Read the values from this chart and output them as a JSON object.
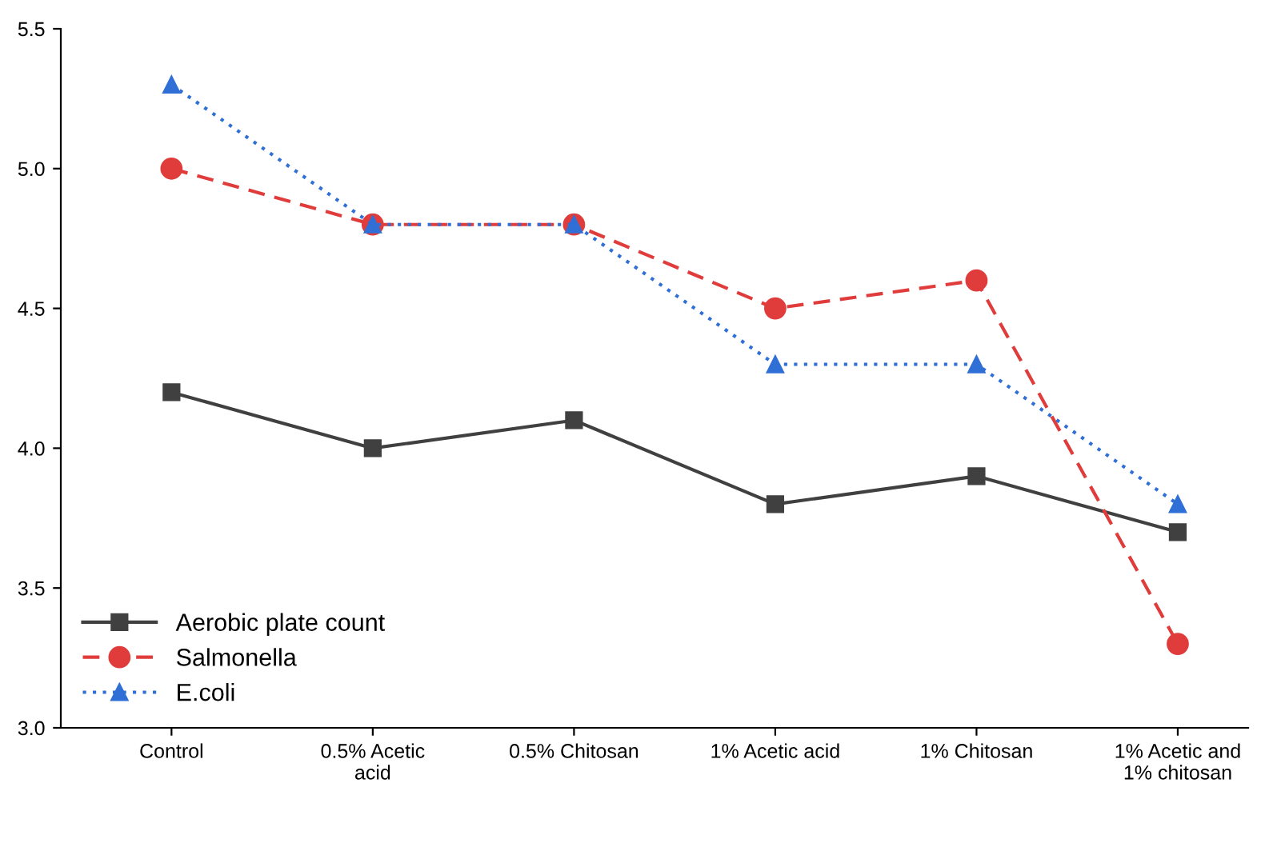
{
  "chart_data": {
    "type": "line",
    "categories": [
      "Control",
      "0.5% Acetic\nacid",
      "0.5% Chitosan",
      "1% Acetic acid",
      "1% Chitosan",
      "1% Acetic and\n1% chitosan"
    ],
    "series": [
      {
        "name": "Aerobic plate count",
        "color": "#404040",
        "values": [
          4.2,
          4.0,
          4.1,
          3.8,
          3.9,
          3.7
        ],
        "marker": "square",
        "line_style": "solid"
      },
      {
        "name": "Salmonella",
        "color": "#e03c3c",
        "values": [
          5.0,
          4.8,
          4.8,
          4.5,
          4.6,
          3.3
        ],
        "marker": "circle",
        "line_style": "dashed"
      },
      {
        "name": "E.coli",
        "color": "#2f6fd6",
        "values": [
          5.3,
          4.8,
          4.8,
          4.3,
          4.3,
          3.8
        ],
        "marker": "triangle",
        "line_style": "dotted"
      }
    ],
    "ylim": [
      3.0,
      5.5
    ],
    "yticks": [
      {
        "value": 3,
        "label": "3.0"
      },
      3.5,
      {
        "value": 4,
        "label": "4.0"
      },
      4.5,
      {
        "value": 5,
        "label": "5.0"
      },
      5.5
    ],
    "grid": false,
    "legend": "bottom left"
  }
}
